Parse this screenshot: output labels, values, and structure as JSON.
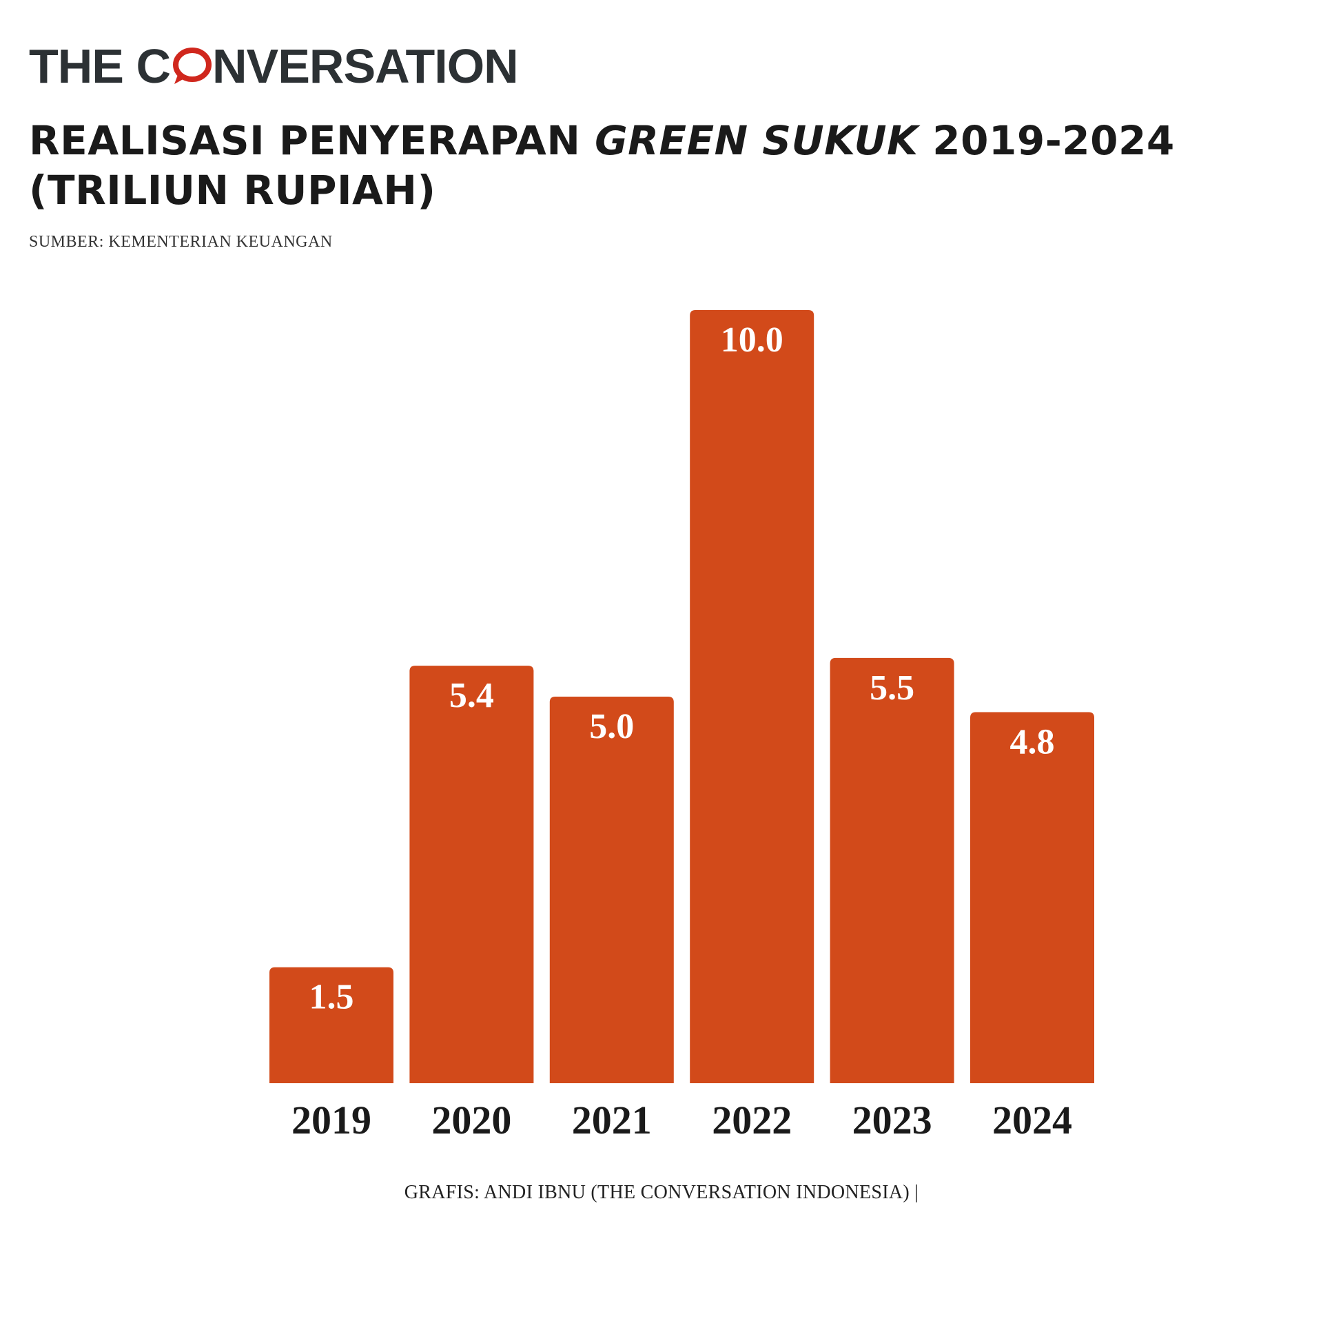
{
  "brand": {
    "name_prefix": "THE C",
    "name_suffix": "NVERSATION",
    "icon": "speech-bubble-o-icon",
    "accent_color": "#d0271d"
  },
  "header": {
    "title_part1": "REALISASI PENYERAPAN ",
    "title_italic": "GREEN SUKUK",
    "title_part2": " 2019-2024 (TRILIUN RUPIAH)",
    "source": "SUMBER: KEMENTERIAN KEUANGAN"
  },
  "footer": {
    "credit": "GRAFIS: ANDI IBNU (THE CONVERSATION INDONESIA) |"
  },
  "colors": {
    "bar": "#d24a1a",
    "bar_label": "#ffffff",
    "tick_label": "#1a1a1a"
  },
  "chart_data": {
    "type": "bar",
    "categories": [
      "2019",
      "2020",
      "2021",
      "2022",
      "2023",
      "2024"
    ],
    "values": [
      1.5,
      5.4,
      5.0,
      10.0,
      5.5,
      4.8
    ],
    "value_labels": [
      "1.5",
      "5.4",
      "5.0",
      "10.0",
      "5.5",
      "4.8"
    ],
    "title": "REALISASI PENYERAPAN GREEN SUKUK 2019-2024 (TRILIUN RUPIAH)",
    "xlabel": "",
    "ylabel": "",
    "ylim": [
      0,
      10
    ],
    "grid": false,
    "legend": "none"
  }
}
